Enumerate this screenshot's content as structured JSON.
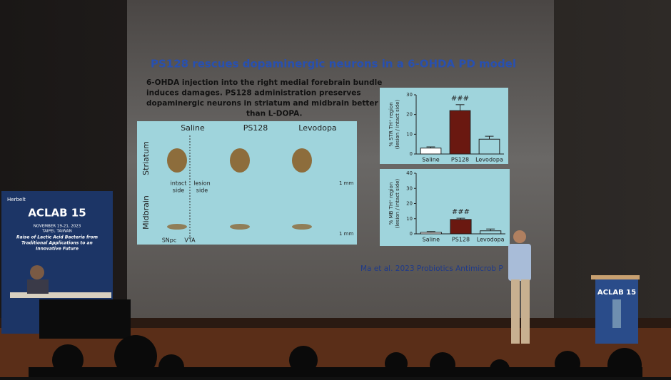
{
  "slide": {
    "title": "PS128 rescues dopaminergic neurons in a 6-OHDA PD model",
    "text": [
      "6-OHDA injection into the right medial forebrain bundle",
      "induces damages. PS128 administration preserves",
      "dopaminergic neurons in striatum and midbrain better",
      "than L-DOPA."
    ],
    "images": {
      "columns": [
        "Saline",
        "PS128",
        "Levodopa"
      ],
      "rows": [
        "Striatum",
        "Midbrain"
      ],
      "intact": [
        "intact",
        "side"
      ],
      "lesion": [
        "lesion",
        "side"
      ],
      "scale": "1 mm",
      "regions": [
        "SNpc",
        "VTA"
      ]
    },
    "charts": [
      {
        "ylabel": [
          "% STR TH⁺ region",
          "(lesion / intact side)"
        ],
        "categories": [
          "Saline",
          "PS128",
          "Levodopa"
        ],
        "values": [
          3,
          22,
          7.5
        ],
        "errors": [
          0.6,
          3,
          1.5
        ],
        "ylim": [
          0,
          30
        ],
        "yticks": [
          0,
          10,
          20,
          30
        ],
        "annotation": "###"
      },
      {
        "ylabel": [
          "% MB TH⁺ region",
          "(lesion / intact side)"
        ],
        "categories": [
          "Saline",
          "PS128",
          "Levodopa"
        ],
        "values": [
          1,
          9.5,
          2
        ],
        "errors": [
          0.5,
          0.8,
          1.2
        ],
        "ylim": [
          0,
          40
        ],
        "yticks": [
          0,
          10,
          20,
          30,
          40
        ],
        "annotation": "###"
      }
    ],
    "citation": "Ma et al. 2023 Probiotics Antimicrob P"
  },
  "banner": {
    "logo": "Herbelt",
    "title": "ACLAB 15",
    "date": "NOVEMBER 19-21, 2023",
    "place": "TAIPEI, TAIWAN",
    "theme": [
      "Raise of Lactic Acid Bacteria from",
      "Traditional Applications to an",
      "Innovative Future"
    ]
  },
  "podium": {
    "title": "ACLAB 15"
  }
}
